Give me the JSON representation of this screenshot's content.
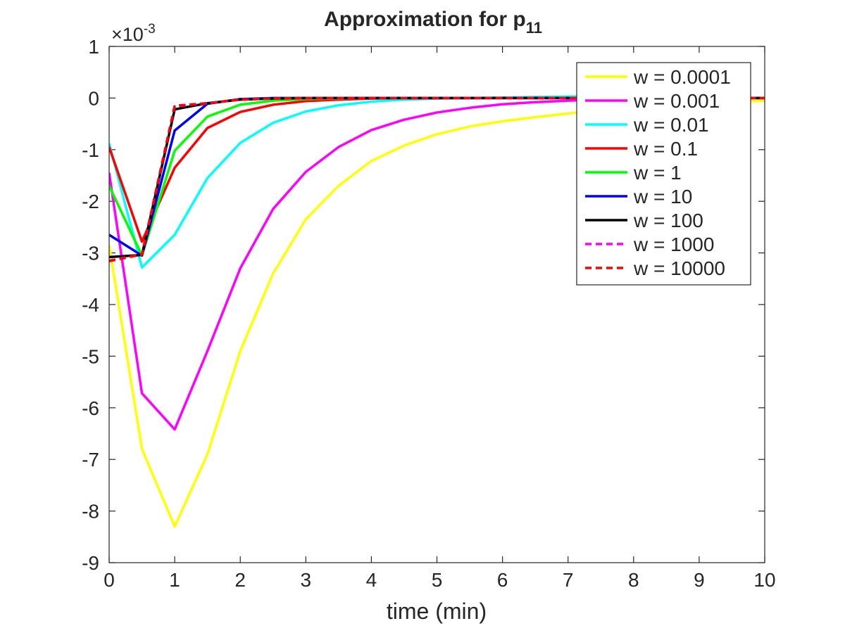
{
  "chart_data": {
    "type": "line",
    "title_main": "Approximation for p",
    "title_sub": "11",
    "xlabel": "time (min)",
    "ylabel": "",
    "xlim": [
      0,
      10
    ],
    "ylim": [
      -9,
      1
    ],
    "x_ticks": [
      0,
      1,
      2,
      3,
      4,
      5,
      6,
      7,
      8,
      9,
      10
    ],
    "y_ticks": [
      1,
      0,
      -1,
      -2,
      -3,
      -4,
      -5,
      -6,
      -7,
      -8,
      -9
    ],
    "y_tick_labels": [
      "1",
      "0",
      "-1",
      "-2",
      "-3",
      "-4",
      "-5",
      "-6",
      "-7",
      "-8",
      "-9"
    ],
    "y_exponent_base": "×10",
    "y_exponent_power": "-3",
    "grid": false,
    "legend_position": "top-right",
    "series": [
      {
        "name": "w = 0.0001",
        "color": "#ffff00",
        "dash": false,
        "x": [
          0,
          0.5,
          1,
          1.5,
          2,
          2.5,
          3,
          3.5,
          4,
          4.5,
          5,
          5.5,
          6,
          6.5,
          7,
          7.5,
          8,
          8.5,
          9,
          9.5,
          10
        ],
        "y": [
          -2.85,
          -6.8,
          -8.3,
          -6.9,
          -4.9,
          -3.4,
          -2.35,
          -1.7,
          -1.22,
          -0.92,
          -0.7,
          -0.55,
          -0.45,
          -0.37,
          -0.3,
          -0.24,
          -0.19,
          -0.14,
          -0.1,
          -0.07,
          -0.05
        ]
      },
      {
        "name": "w = 0.001",
        "color": "#ff00ff",
        "dash": false,
        "x": [
          0,
          0.5,
          1,
          1.5,
          2,
          2.5,
          3,
          3.5,
          4,
          4.5,
          5,
          5.5,
          6,
          6.5,
          7,
          7.5,
          8,
          8.5,
          9,
          9.5,
          10
        ],
        "y": [
          -1.45,
          -5.72,
          -6.42,
          -4.9,
          -3.3,
          -2.15,
          -1.43,
          -0.95,
          -0.62,
          -0.42,
          -0.28,
          -0.19,
          -0.12,
          -0.08,
          -0.05,
          -0.03,
          -0.02,
          -0.01,
          -0.01,
          0,
          0
        ]
      },
      {
        "name": "w = 0.01",
        "color": "#00ffff",
        "dash": false,
        "x": [
          0,
          0.5,
          1,
          1.5,
          2,
          2.5,
          3,
          3.5,
          4,
          4.5,
          5,
          5.5,
          6,
          6.5,
          7,
          7.5,
          8,
          8.5,
          9,
          9.5,
          10
        ],
        "y": [
          -0.88,
          -3.28,
          -2.65,
          -1.55,
          -0.87,
          -0.48,
          -0.26,
          -0.14,
          -0.07,
          -0.03,
          -0.01,
          0,
          0.01,
          0.02,
          0.03,
          0.04,
          0.04,
          0.03,
          0.02,
          0.01,
          0
        ]
      },
      {
        "name": "w = 0.1",
        "color": "#ff0000",
        "dash": false,
        "x": [
          0,
          0.5,
          1,
          1.5,
          2,
          2.5,
          3,
          3.5,
          4,
          4.5,
          5,
          5.5,
          6,
          6.5,
          7,
          7.5,
          8,
          8.5,
          9,
          9.5,
          10
        ],
        "y": [
          -0.95,
          -2.78,
          -1.35,
          -0.58,
          -0.27,
          -0.13,
          -0.06,
          -0.03,
          -0.01,
          0,
          0,
          0,
          0,
          0,
          0,
          0,
          0,
          0,
          0,
          0,
          0
        ]
      },
      {
        "name": "w = 1",
        "color": "#00ff00",
        "dash": false,
        "x": [
          0,
          0.5,
          1,
          1.5,
          2,
          2.5,
          3,
          3.5,
          4,
          4.5,
          5,
          5.5,
          6,
          6.5,
          7,
          7.5,
          8,
          8.5,
          9,
          9.5,
          10
        ],
        "y": [
          -1.7,
          -3.05,
          -1.02,
          -0.36,
          -0.13,
          -0.05,
          -0.02,
          -0.01,
          0,
          0,
          0,
          0,
          0,
          0,
          0,
          0,
          0,
          0,
          0,
          0,
          0
        ]
      },
      {
        "name": "w = 10",
        "color": "#0000ff",
        "dash": false,
        "x": [
          0,
          0.5,
          1,
          1.5,
          2,
          2.5,
          3,
          3.5,
          4,
          4.5,
          5,
          5.5,
          6,
          6.5,
          7,
          7.5,
          8,
          8.5,
          9,
          9.5,
          10
        ],
        "y": [
          -2.65,
          -3.05,
          -0.63,
          -0.11,
          -0.02,
          0,
          0,
          0,
          0,
          0,
          0,
          0,
          0,
          0,
          0,
          0,
          0,
          0,
          0,
          0,
          0
        ]
      },
      {
        "name": "w = 100",
        "color": "#000000",
        "dash": false,
        "x": [
          0,
          0.5,
          1,
          1.5,
          2,
          2.5,
          3,
          3.5,
          4,
          4.5,
          5,
          5.5,
          6,
          6.5,
          7,
          7.5,
          8,
          8.5,
          9,
          9.5,
          10
        ],
        "y": [
          -3.08,
          -3.04,
          -0.22,
          -0.1,
          -0.03,
          -0.01,
          0,
          0,
          0,
          0,
          0,
          0,
          0,
          0,
          0,
          0,
          0,
          0,
          0,
          0,
          0
        ]
      },
      {
        "name": "w = 1000",
        "color": "#ff00ff",
        "dash": true,
        "x": [
          0,
          0.5,
          1,
          1.5,
          2,
          2.5,
          3,
          3.5,
          4,
          4.5,
          5,
          5.5,
          6,
          6.5,
          7,
          7.5,
          8,
          8.5,
          9,
          9.5,
          10
        ],
        "y": [
          -3.15,
          -3.03,
          -0.16,
          -0.1,
          -0.03,
          -0.01,
          0,
          0,
          0,
          0,
          0,
          0,
          0,
          0,
          0,
          0,
          0,
          0,
          0,
          0,
          0
        ]
      },
      {
        "name": "w = 10000",
        "color": "#ff0000",
        "dash": true,
        "x": [
          0,
          0.5,
          1,
          1.5,
          2,
          2.5,
          3,
          3.5,
          4,
          4.5,
          5,
          5.5,
          6,
          6.5,
          7,
          7.5,
          8,
          8.5,
          9,
          9.5,
          10
        ],
        "y": [
          -3.16,
          -3.03,
          -0.15,
          -0.1,
          -0.03,
          -0.01,
          0,
          0,
          0,
          0,
          0,
          0,
          0,
          0,
          0,
          0,
          0,
          0,
          0,
          0,
          0
        ]
      }
    ]
  }
}
